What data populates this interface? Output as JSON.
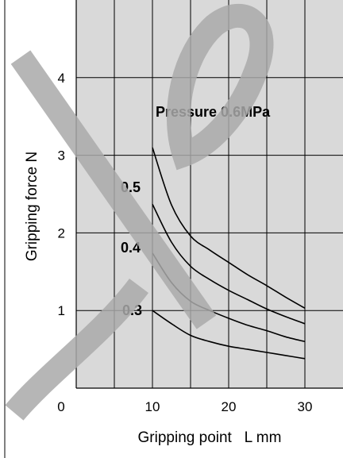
{
  "chart_data": {
    "type": "line",
    "xlabel": "Gripping point   L mm",
    "ylabel": "Gripping force  N",
    "xlim": [
      0,
      35
    ],
    "ylim": [
      0,
      5
    ],
    "x_ticks": [
      "0",
      "10",
      "20",
      "30"
    ],
    "y_ticks": [
      "1",
      "2",
      "3",
      "4"
    ],
    "grid": true,
    "plot_background": "#d9d9d9",
    "line_color": "#000000",
    "watermark_color": "#a9a9a9",
    "series": [
      {
        "name": "Pressure 0.6MPa",
        "x": [
          10,
          12.5,
          15,
          17.5,
          20,
          22.5,
          25,
          27.5,
          30
        ],
        "y": [
          3.1,
          2.36,
          1.96,
          1.78,
          1.62,
          1.46,
          1.32,
          1.17,
          1.03
        ]
      },
      {
        "name": "0.5",
        "x": [
          10,
          12.5,
          15,
          17.5,
          20,
          22.5,
          25,
          27.5,
          30
        ],
        "y": [
          2.37,
          1.88,
          1.57,
          1.4,
          1.26,
          1.14,
          1.02,
          0.92,
          0.83
        ]
      },
      {
        "name": "0.4",
        "x": [
          10,
          12.5,
          15,
          17.5,
          20,
          22.5,
          25,
          27.5,
          30
        ],
        "y": [
          1.74,
          1.36,
          1.12,
          1.0,
          0.9,
          0.81,
          0.74,
          0.66,
          0.6
        ]
      },
      {
        "name": "0.3",
        "x": [
          10,
          12.5,
          15,
          17.5,
          20,
          22.5,
          25,
          27.5,
          30
        ],
        "y": [
          1.0,
          0.83,
          0.68,
          0.6,
          0.54,
          0.5,
          0.46,
          0.42,
          0.38
        ]
      }
    ]
  }
}
